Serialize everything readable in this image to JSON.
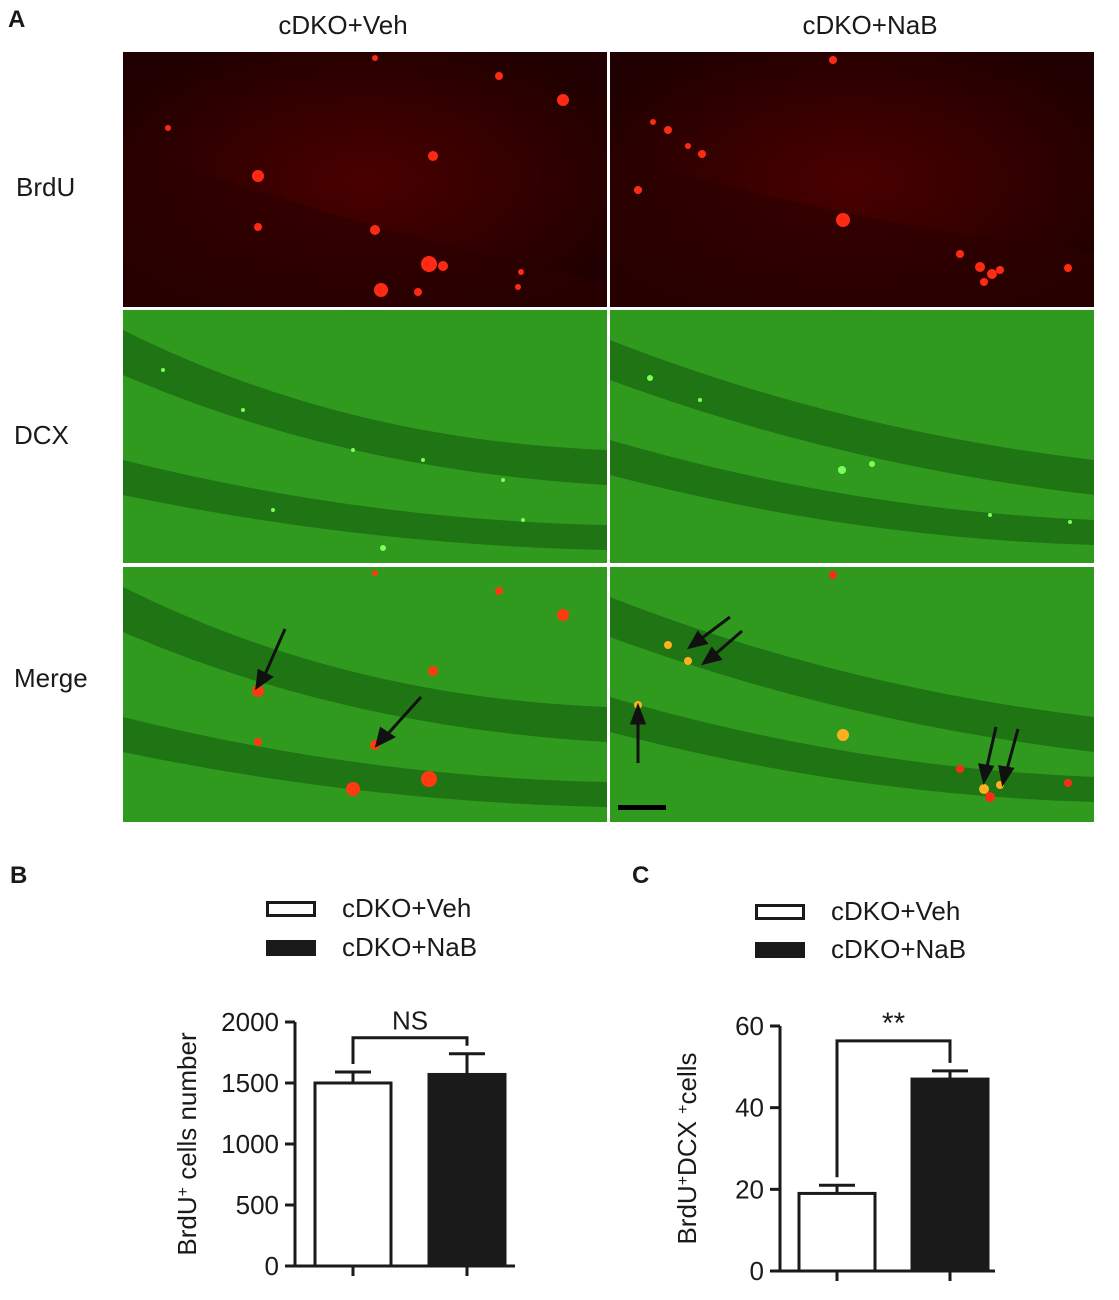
{
  "panel_a": {
    "letter": "A",
    "columns": [
      "cDKO+Veh",
      "cDKO+NaB"
    ],
    "rows": [
      "BrdU",
      "DCX",
      "Merge"
    ]
  },
  "panel_b": {
    "letter": "B",
    "legend": [
      "cDKO+Veh",
      "cDKO+NaB"
    ],
    "significance": "NS"
  },
  "panel_c": {
    "letter": "C",
    "legend": [
      "cDKO+Veh",
      "cDKO+NaB"
    ],
    "significance": "**"
  },
  "colors": {
    "brdu_bg": "#3a0000",
    "brdu_cell": "#ff2010",
    "dcx_bg": "#2f9a1e",
    "dcx_band": "#1f7414",
    "dcx_cell": "#7dff5a",
    "bar_veh": "#ffffff",
    "bar_nab": "#1a1a1a"
  },
  "chart_data": [
    {
      "type": "bar",
      "panel": "B",
      "categories": [
        "cDKO+Veh",
        "cDKO+NaB"
      ],
      "values": [
        1500,
        1570
      ],
      "errors": [
        90,
        170
      ],
      "ylabel_main": "BrdU",
      "ylabel_sup": "+",
      "ylabel_rest": " cells number",
      "ylim": [
        0,
        2000
      ],
      "yticks": [
        0,
        500,
        1000,
        1500,
        2000
      ],
      "significance": "NS"
    },
    {
      "type": "bar",
      "panel": "C",
      "categories": [
        "cDKO+Veh",
        "cDKO+NaB"
      ],
      "values": [
        19,
        47
      ],
      "errors": [
        2,
        2
      ],
      "ylabel_main": "BrdU",
      "ylabel_sup": "+",
      "ylabel_mid": "DCX ",
      "ylabel_sup2": "+",
      "ylabel_rest": "cells",
      "ylim": [
        0,
        60
      ],
      "yticks": [
        0,
        20,
        40,
        60
      ],
      "significance": "**"
    }
  ]
}
